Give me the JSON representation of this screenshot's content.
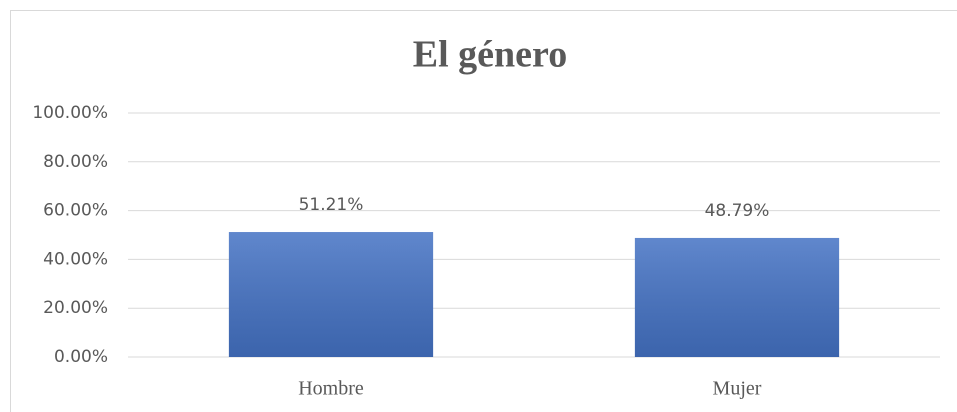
{
  "chart_data": {
    "type": "bar",
    "title": "El género",
    "categories": [
      "Hombre",
      "Mujer"
    ],
    "values": [
      51.21,
      48.79
    ],
    "value_labels": [
      "51.21%",
      "48.79%"
    ],
    "color": "#4472c4",
    "ylim": [
      0,
      100
    ],
    "yticks": [
      {
        "value": 0,
        "label": "0.00%"
      },
      {
        "value": 20,
        "label": "20.00%"
      },
      {
        "value": 40,
        "label": "40.00%"
      },
      {
        "value": 60,
        "label": "60.00%"
      },
      {
        "value": 80,
        "label": "80.00%"
      },
      {
        "value": 100,
        "label": "100.00%"
      }
    ],
    "grid": true
  }
}
